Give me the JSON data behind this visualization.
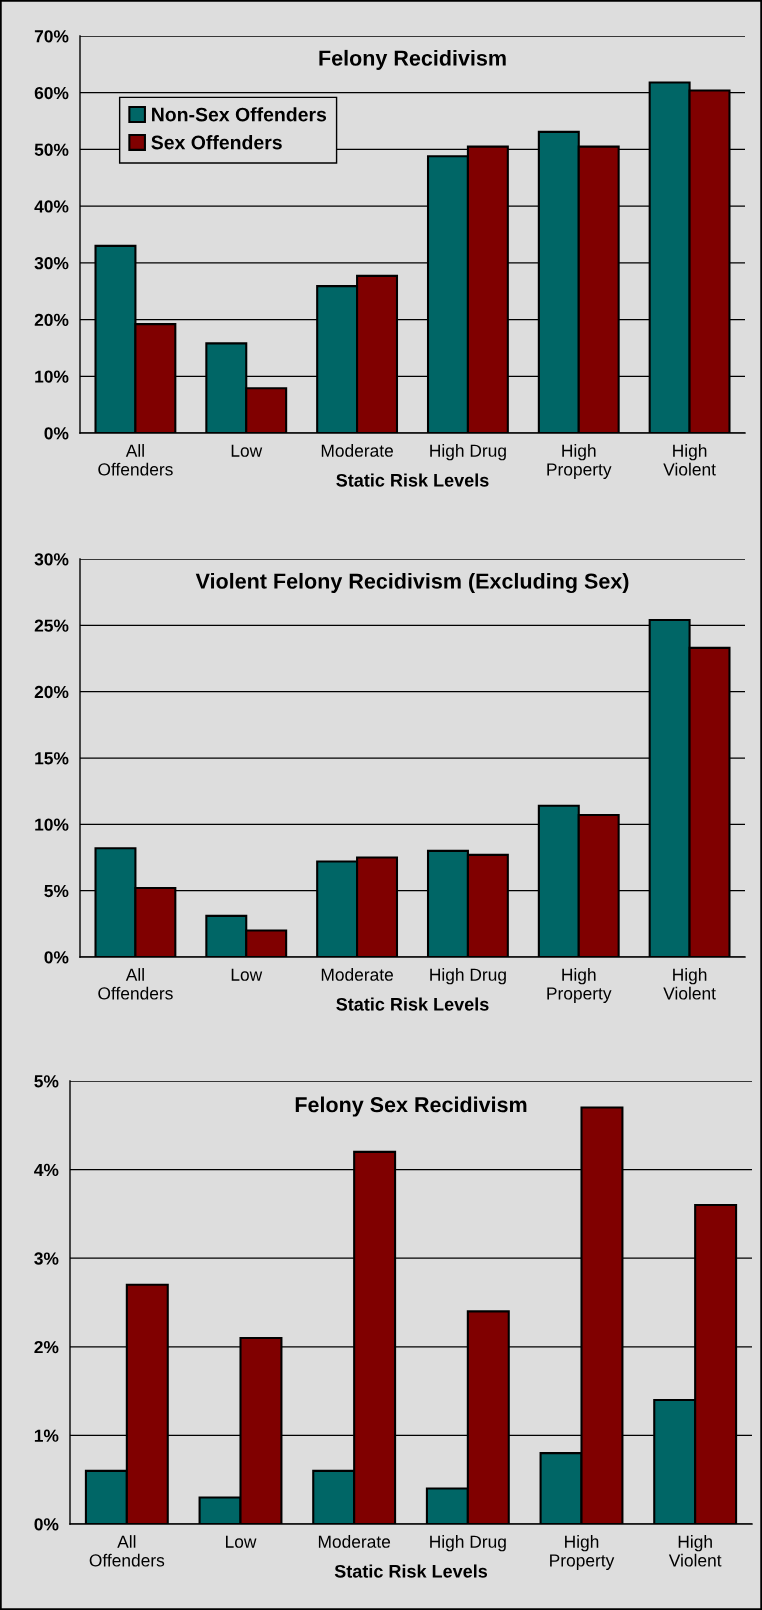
{
  "chart_data": [
    {
      "type": "bar",
      "title": "Felony Recidivism",
      "xlabel": "Static Risk Levels",
      "categories": [
        "All\nOffenders",
        "Low",
        "Moderate",
        "High Drug",
        "High\nProperty",
        "High\nViolent"
      ],
      "series": [
        {
          "name": "Non-Sex Offenders",
          "color": "#006666",
          "values": [
            33.0,
            15.8,
            25.9,
            48.8,
            53.1,
            61.8
          ]
        },
        {
          "name": "Sex Offenders",
          "color": "#800000",
          "values": [
            19.2,
            7.9,
            27.7,
            50.5,
            50.5,
            60.4
          ]
        }
      ],
      "ylim": [
        0,
        70
      ],
      "yticks": [
        {
          "value": 0,
          "label": "0%"
        },
        {
          "value": 10,
          "label": "10%"
        },
        {
          "value": 20,
          "label": "20%"
        },
        {
          "value": 30,
          "label": "30%"
        },
        {
          "value": 40,
          "label": "40%"
        },
        {
          "value": 50,
          "label": "50%"
        },
        {
          "value": 60,
          "label": "60%"
        },
        {
          "value": 70,
          "label": "70%"
        }
      ],
      "grid": "y",
      "legend": "top left"
    },
    {
      "type": "bar",
      "title": "Violent Felony Recidivism (Excluding Sex)",
      "xlabel": "Static Risk Levels",
      "categories": [
        "All\nOffenders",
        "Low",
        "Moderate",
        "High Drug",
        "High\nProperty",
        "High\nViolent"
      ],
      "series": [
        {
          "color": "#006666",
          "values": [
            8.2,
            3.1,
            7.2,
            8.0,
            11.4,
            25.4
          ]
        },
        {
          "color": "#800000",
          "values": [
            5.2,
            2.0,
            7.5,
            7.7,
            10.7,
            23.3
          ]
        }
      ],
      "ylim": [
        0,
        30
      ],
      "yticks": [
        {
          "value": 0,
          "label": "0%"
        },
        {
          "value": 5,
          "label": "5%"
        },
        {
          "value": 10,
          "label": "10%"
        },
        {
          "value": 15,
          "label": "15%"
        },
        {
          "value": 20,
          "label": "20%"
        },
        {
          "value": 25,
          "label": "25%"
        },
        {
          "value": 30,
          "label": "30%"
        }
      ],
      "grid": "y"
    },
    {
      "type": "bar",
      "title": "Felony Sex Recidivism",
      "xlabel": "Static Risk Levels",
      "categories": [
        "All\nOffenders",
        "Low",
        "Moderate",
        "High Drug",
        "High\nProperty",
        "High\nViolent"
      ],
      "series": [
        {
          "color": "#006666",
          "values": [
            0.6,
            0.3,
            0.6,
            0.4,
            0.8,
            1.4
          ]
        },
        {
          "color": "#800000",
          "values": [
            2.7,
            2.1,
            4.2,
            2.4,
            4.7,
            3.6
          ]
        }
      ],
      "ylim": [
        0,
        5
      ],
      "yticks": [
        {
          "value": 0,
          "label": "0%"
        },
        {
          "value": 1,
          "label": "1%"
        },
        {
          "value": 2,
          "label": "2%"
        },
        {
          "value": 3,
          "label": "3%"
        },
        {
          "value": 4,
          "label": "4%"
        },
        {
          "value": 5,
          "label": "5%"
        }
      ],
      "grid": "y"
    }
  ]
}
